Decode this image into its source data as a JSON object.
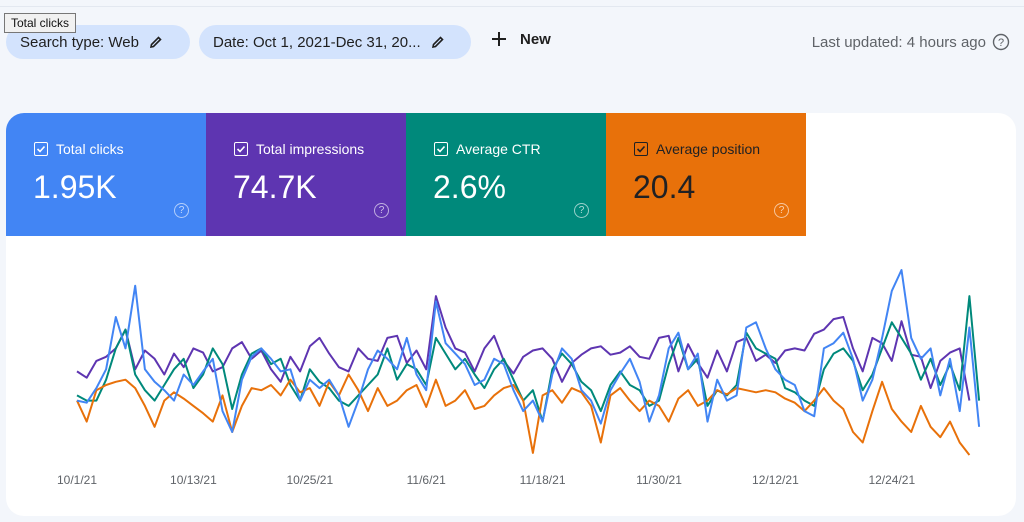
{
  "toolbar": {
    "tooltip": "Total clicks",
    "search_type": "Search type: Web",
    "date": "Date: Oct 1, 2021-Dec 31, 20...",
    "new": "New",
    "last_updated": "Last updated: 4 hours ago"
  },
  "cards": [
    {
      "label": "Total clicks",
      "value": "1.95K",
      "color": "#4285f4",
      "text_color": "#ffffff"
    },
    {
      "label": "Total impressions",
      "value": "74.7K",
      "color": "#5e35b1",
      "text_color": "#ffffff"
    },
    {
      "label": "Average CTR",
      "value": "2.6%",
      "color": "#00897b",
      "text_color": "#ffffff"
    },
    {
      "label": "Average position",
      "value": "20.4",
      "color": "#e8710a",
      "text_color": "#202124"
    }
  ],
  "chart": {
    "type": "line",
    "x_labels": [
      "10/1/21",
      "10/13/21",
      "10/25/21",
      "11/6/21",
      "11/18/21",
      "11/30/21",
      "12/12/21",
      "12/24/21"
    ],
    "series": [
      {
        "color": "#5e35b1",
        "values": [
          128,
          122,
          138,
          142,
          150,
          168,
          130,
          148,
          140,
          125,
          145,
          132,
          150,
          146,
          128,
          132,
          150,
          156,
          140,
          148,
          130,
          118,
          142,
          128,
          152,
          160,
          145,
          132,
          128,
          150,
          140,
          138,
          160,
          162,
          136,
          148,
          130,
          200,
          170,
          150,
          146,
          128,
          150,
          162,
          138,
          126,
          142,
          148,
          150,
          140,
          118,
          136,
          144,
          150,
          152,
          144,
          146,
          152,
          142,
          140,
          160,
          162,
          128,
          154,
          136,
          122,
          148,
          128,
          156,
          160,
          138,
          144,
          136,
          148,
          150,
          148,
          164,
          168,
          178,
          180,
          150,
          128,
          160,
          155,
          138,
          176,
          144,
          142,
          112,
          138,
          146,
          150,
          100
        ]
      },
      {
        "color": "#00897b",
        "values": [
          105,
          100,
          100,
          120,
          150,
          168,
          125,
          110,
          100,
          115,
          130,
          140,
          112,
          125,
          150,
          135,
          92,
          125,
          145,
          150,
          135,
          140,
          115,
          100,
          130,
          118,
          112,
          100,
          95,
          105,
          115,
          125,
          150,
          120,
          135,
          130,
          115,
          160,
          145,
          130,
          140,
          125,
          112,
          130,
          140,
          120,
          100,
          110,
          80,
          130,
          145,
          135,
          118,
          110,
          90,
          115,
          128,
          115,
          110,
          95,
          100,
          135,
          160,
          130,
          140,
          95,
          110,
          105,
          115,
          165,
          150,
          145,
          140,
          112,
          108,
          100,
          95,
          130,
          145,
          150,
          138,
          110,
          125,
          150,
          175,
          160,
          145,
          120,
          140,
          115,
          135,
          110,
          200,
          100
        ]
      },
      {
        "color": "#e8710a",
        "values": [
          100,
          80,
          110,
          115,
          118,
          120,
          112,
          95,
          75,
          100,
          108,
          102,
          95,
          88,
          80,
          105,
          70,
          95,
          112,
          110,
          115,
          105,
          120,
          108,
          112,
          95,
          118,
          105,
          125,
          110,
          90,
          112,
          95,
          100,
          110,
          115,
          94,
          120,
          95,
          100,
          110,
          92,
          95,
          105,
          112,
          115,
          100,
          50,
          105,
          110,
          98,
          112,
          108,
          95,
          60,
          105,
          112,
          100,
          90,
          100,
          95,
          80,
          102,
          110,
          95,
          100,
          110,
          106,
          112,
          110,
          108,
          110,
          108,
          102,
          98,
          90,
          100,
          112,
          100,
          92,
          70,
          60,
          90,
          118,
          92,
          80,
          70,
          95,
          75,
          65,
          80,
          60,
          48
        ]
      },
      {
        "color": "#4285f4",
        "values": [
          100,
          98,
          112,
          130,
          180,
          150,
          210,
          130,
          118,
          110,
          100,
          125,
          115,
          128,
          140,
          90,
          70,
          120,
          142,
          150,
          140,
          128,
          130,
          100,
          120,
          112,
          120,
          105,
          75,
          100,
          130,
          148,
          140,
          130,
          160,
          125,
          110,
          195,
          155,
          145,
          135,
          115,
          120,
          140,
          135,
          110,
          90,
          100,
          80,
          125,
          150,
          140,
          110,
          100,
          78,
          110,
          126,
          140,
          118,
          80,
          105,
          150,
          165,
          130,
          145,
          80,
          120,
          100,
          105,
          170,
          175,
          150,
          130,
          120,
          115,
          90,
          85,
          150,
          155,
          165,
          140,
          100,
          120,
          160,
          205,
          225,
          160,
          140,
          150,
          105,
          140,
          90,
          170,
          75
        ]
      }
    ]
  }
}
